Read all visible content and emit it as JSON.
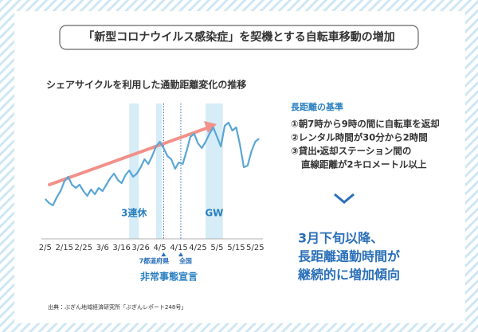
{
  "title": "「新型コロナウイルス感染症」を契機とする自転車移動の増加",
  "chart_data": {
    "type": "line",
    "title": "シェアサイクルを利用した通勤距離変化の推移",
    "x": [
      0,
      2,
      4,
      6,
      8,
      10,
      12,
      14,
      16,
      18,
      20,
      22,
      24,
      26,
      28,
      30,
      32,
      34,
      36,
      38,
      40,
      42,
      44,
      46,
      48,
      50,
      52,
      54,
      56,
      58,
      60,
      62,
      64,
      66,
      68,
      70,
      72,
      74,
      76,
      78,
      80,
      82,
      84,
      86,
      88,
      90,
      92,
      94,
      96,
      98,
      100,
      102,
      104,
      106,
      108,
      110,
      112
    ],
    "values": [
      50,
      45,
      42,
      52,
      60,
      72,
      78,
      68,
      64,
      68,
      60,
      54,
      62,
      56,
      64,
      60,
      68,
      76,
      82,
      74,
      70,
      80,
      86,
      78,
      82,
      90,
      100,
      94,
      104,
      116,
      122,
      114,
      104,
      100,
      88,
      96,
      94,
      110,
      128,
      132,
      120,
      114,
      122,
      132,
      140,
      128,
      116,
      142,
      146,
      136,
      140,
      118,
      90,
      92,
      110,
      122,
      126
    ],
    "color": "#5aa6d6",
    "xlim": [
      -2,
      114
    ],
    "ylim": [
      0,
      180
    ],
    "xticks": [
      {
        "value": 0,
        "label": "2/5"
      },
      {
        "value": 10,
        "label": "2/15"
      },
      {
        "value": 20,
        "label": "2/25"
      },
      {
        "value": 30,
        "label": "3/6"
      },
      {
        "value": 40,
        "label": "3/16"
      },
      {
        "value": 50,
        "label": "3/26"
      },
      {
        "value": 60,
        "label": "4/5"
      },
      {
        "value": 70,
        "label": "4/15"
      },
      {
        "value": 80,
        "label": "4/25"
      },
      {
        "value": 90,
        "label": "5/5"
      },
      {
        "value": 100,
        "label": "5/15"
      },
      {
        "value": 110,
        "label": "5/25"
      }
    ],
    "bands": [
      {
        "label": "3連休",
        "start": 44,
        "end": 49
      },
      {
        "start": 58,
        "end": 61
      },
      {
        "label": "GW",
        "start": 84,
        "end": 93
      }
    ],
    "events": [
      {
        "label": "7都道府県",
        "x": 62
      },
      {
        "label": "全国",
        "x": 71
      }
    ],
    "event_label": "非常事態宣言"
  },
  "panel": {
    "heading": "長距離の基準",
    "items": [
      "①朝7時から9時の間に自転車を返却",
      "②レンタル時間が30分から2時間",
      "③貸出・返却ステーション間の",
      "直線距離が2キロメートル以上"
    ],
    "conclusion": [
      "3月下旬以降、",
      "長距離通勤時間が",
      "継続的に増加傾向"
    ]
  },
  "source": "出典：ぶぎん地域経済研究所「ぶぎんレポート248号」"
}
